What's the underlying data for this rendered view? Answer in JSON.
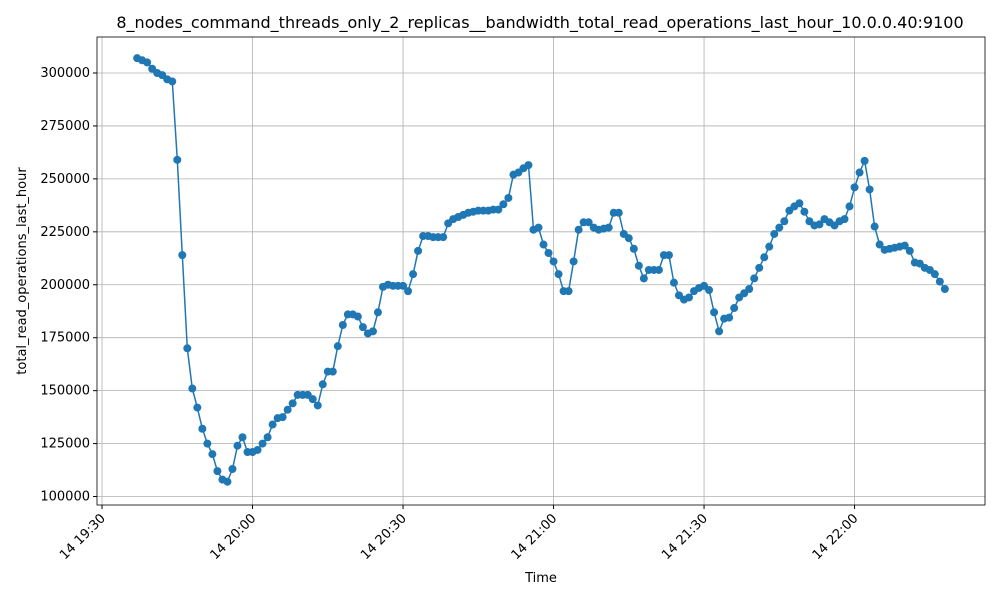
{
  "chart_data": {
    "type": "line",
    "title": "8_nodes_command_threads_only_2_replicas__bandwidth_total_read_operations_last_hour_10.0.0.40:9100",
    "xlabel": "Time",
    "ylabel": "total_read_operations_last_hour",
    "x": [
      "14 19:37",
      "14 19:38",
      "14 19:39",
      "14 19:40",
      "14 19:41",
      "14 19:42",
      "14 19:43",
      "14 19:44",
      "14 19:45",
      "14 19:46",
      "14 19:47",
      "14 19:48",
      "14 19:49",
      "14 19:50",
      "14 19:51",
      "14 19:52",
      "14 19:53",
      "14 19:54",
      "14 19:55",
      "14 19:56",
      "14 19:57",
      "14 19:58",
      "14 19:59",
      "14 20:00",
      "14 20:01",
      "14 20:02",
      "14 20:03",
      "14 20:04",
      "14 20:05",
      "14 20:06",
      "14 20:07",
      "14 20:08",
      "14 20:09",
      "14 20:10",
      "14 20:11",
      "14 20:12",
      "14 20:13",
      "14 20:14",
      "14 20:15",
      "14 20:16",
      "14 20:17",
      "14 20:18",
      "14 20:19",
      "14 20:20",
      "14 20:21",
      "14 20:22",
      "14 20:23",
      "14 20:24",
      "14 20:25",
      "14 20:26",
      "14 20:27",
      "14 20:28",
      "14 20:29",
      "14 20:30",
      "14 20:31",
      "14 20:32",
      "14 20:33",
      "14 20:34",
      "14 20:35",
      "14 20:36",
      "14 20:37",
      "14 20:38",
      "14 20:39",
      "14 20:40",
      "14 20:41",
      "14 20:42",
      "14 20:43",
      "14 20:44",
      "14 20:45",
      "14 20:46",
      "14 20:47",
      "14 20:48",
      "14 20:49",
      "14 20:50",
      "14 20:51",
      "14 20:52",
      "14 20:53",
      "14 20:54",
      "14 20:55",
      "14 20:56",
      "14 20:57",
      "14 20:58",
      "14 20:59",
      "14 21:00",
      "14 21:01",
      "14 21:02",
      "14 21:03",
      "14 21:04",
      "14 21:05",
      "14 21:06",
      "14 21:07",
      "14 21:08",
      "14 21:09",
      "14 21:10",
      "14 21:11",
      "14 21:12",
      "14 21:13",
      "14 21:14",
      "14 21:15",
      "14 21:16",
      "14 21:17",
      "14 21:18",
      "14 21:19",
      "14 21:20",
      "14 21:21",
      "14 21:22",
      "14 21:23",
      "14 21:24",
      "14 21:25",
      "14 21:26",
      "14 21:27",
      "14 21:28",
      "14 21:29",
      "14 21:30",
      "14 21:31",
      "14 21:32",
      "14 21:33",
      "14 21:34",
      "14 21:35",
      "14 21:36",
      "14 21:37",
      "14 21:38",
      "14 21:39",
      "14 21:40",
      "14 21:41",
      "14 21:42",
      "14 21:43",
      "14 21:44",
      "14 21:45",
      "14 21:46",
      "14 21:47",
      "14 21:48",
      "14 21:49",
      "14 21:50",
      "14 21:51",
      "14 21:52",
      "14 21:53",
      "14 21:54",
      "14 21:55",
      "14 21:56",
      "14 21:57",
      "14 21:58",
      "14 21:59",
      "14 22:00",
      "14 22:01",
      "14 22:02",
      "14 22:03",
      "14 22:04",
      "14 22:05",
      "14 22:06",
      "14 22:07",
      "14 22:08",
      "14 22:09",
      "14 22:10",
      "14 22:11",
      "14 22:12",
      "14 22:13",
      "14 22:14",
      "14 22:15",
      "14 22:16",
      "14 22:17",
      "14 22:18"
    ],
    "series": [
      {
        "color": "#1f77b4",
        "values": [
          307000,
          306000,
          305000,
          302000,
          300000,
          299000,
          297000,
          296000,
          259000,
          214000,
          170000,
          151000,
          142000,
          132000,
          125000,
          120000,
          112000,
          108000,
          107000,
          113000,
          124000,
          128000,
          121000,
          121000,
          122000,
          125000,
          128000,
          134000,
          137000,
          137500,
          141000,
          144000,
          148000,
          148000,
          148000,
          146000,
          143000,
          153000,
          159000,
          159000,
          171000,
          181000,
          186000,
          186000,
          185000,
          180000,
          177000,
          178000,
          187000,
          199000,
          200000,
          199500,
          199500,
          199500,
          197000,
          205000,
          216000,
          223000,
          223000,
          222500,
          222500,
          222500,
          229000,
          231000,
          232000,
          233000,
          234000,
          234500,
          235000,
          235000,
          235000,
          235500,
          235500,
          238000,
          241000,
          252000,
          253000,
          255000,
          256500,
          226000,
          227000,
          219000,
          215000,
          211000,
          205000,
          197000,
          197000,
          211000,
          226000,
          229500,
          229500,
          227000,
          226000,
          226500,
          227000,
          234000,
          234000,
          224000,
          222000,
          217000,
          209000,
          203000,
          207000,
          207000,
          207000,
          214000,
          214000,
          201000,
          195000,
          193000,
          194000,
          197000,
          198500,
          199500,
          197500,
          187000,
          178000,
          184000,
          184500,
          189000,
          194000,
          196000,
          198000,
          203000,
          208000,
          213000,
          218000,
          224000,
          227000,
          230000,
          235000,
          237000,
          238500,
          234500,
          230000,
          228000,
          228500,
          231000,
          229500,
          228000,
          230000,
          231000,
          237000,
          246000,
          253000,
          258500,
          245000,
          227500,
          219000,
          216500,
          217000,
          217500,
          218000,
          218500,
          216000,
          210500,
          210000,
          208000,
          207000,
          205000,
          201500,
          198000
        ]
      }
    ],
    "xlim": [
      "14 19:29",
      "14 22:26"
    ],
    "xticks": [
      "14 19:30",
      "14 20:00",
      "14 20:30",
      "14 21:00",
      "14 21:30",
      "14 22:00"
    ],
    "ylim": [
      96000,
      317000
    ],
    "yticks": [
      100000,
      125000,
      150000,
      175000,
      200000,
      225000,
      250000,
      275000,
      300000
    ],
    "grid": true
  }
}
